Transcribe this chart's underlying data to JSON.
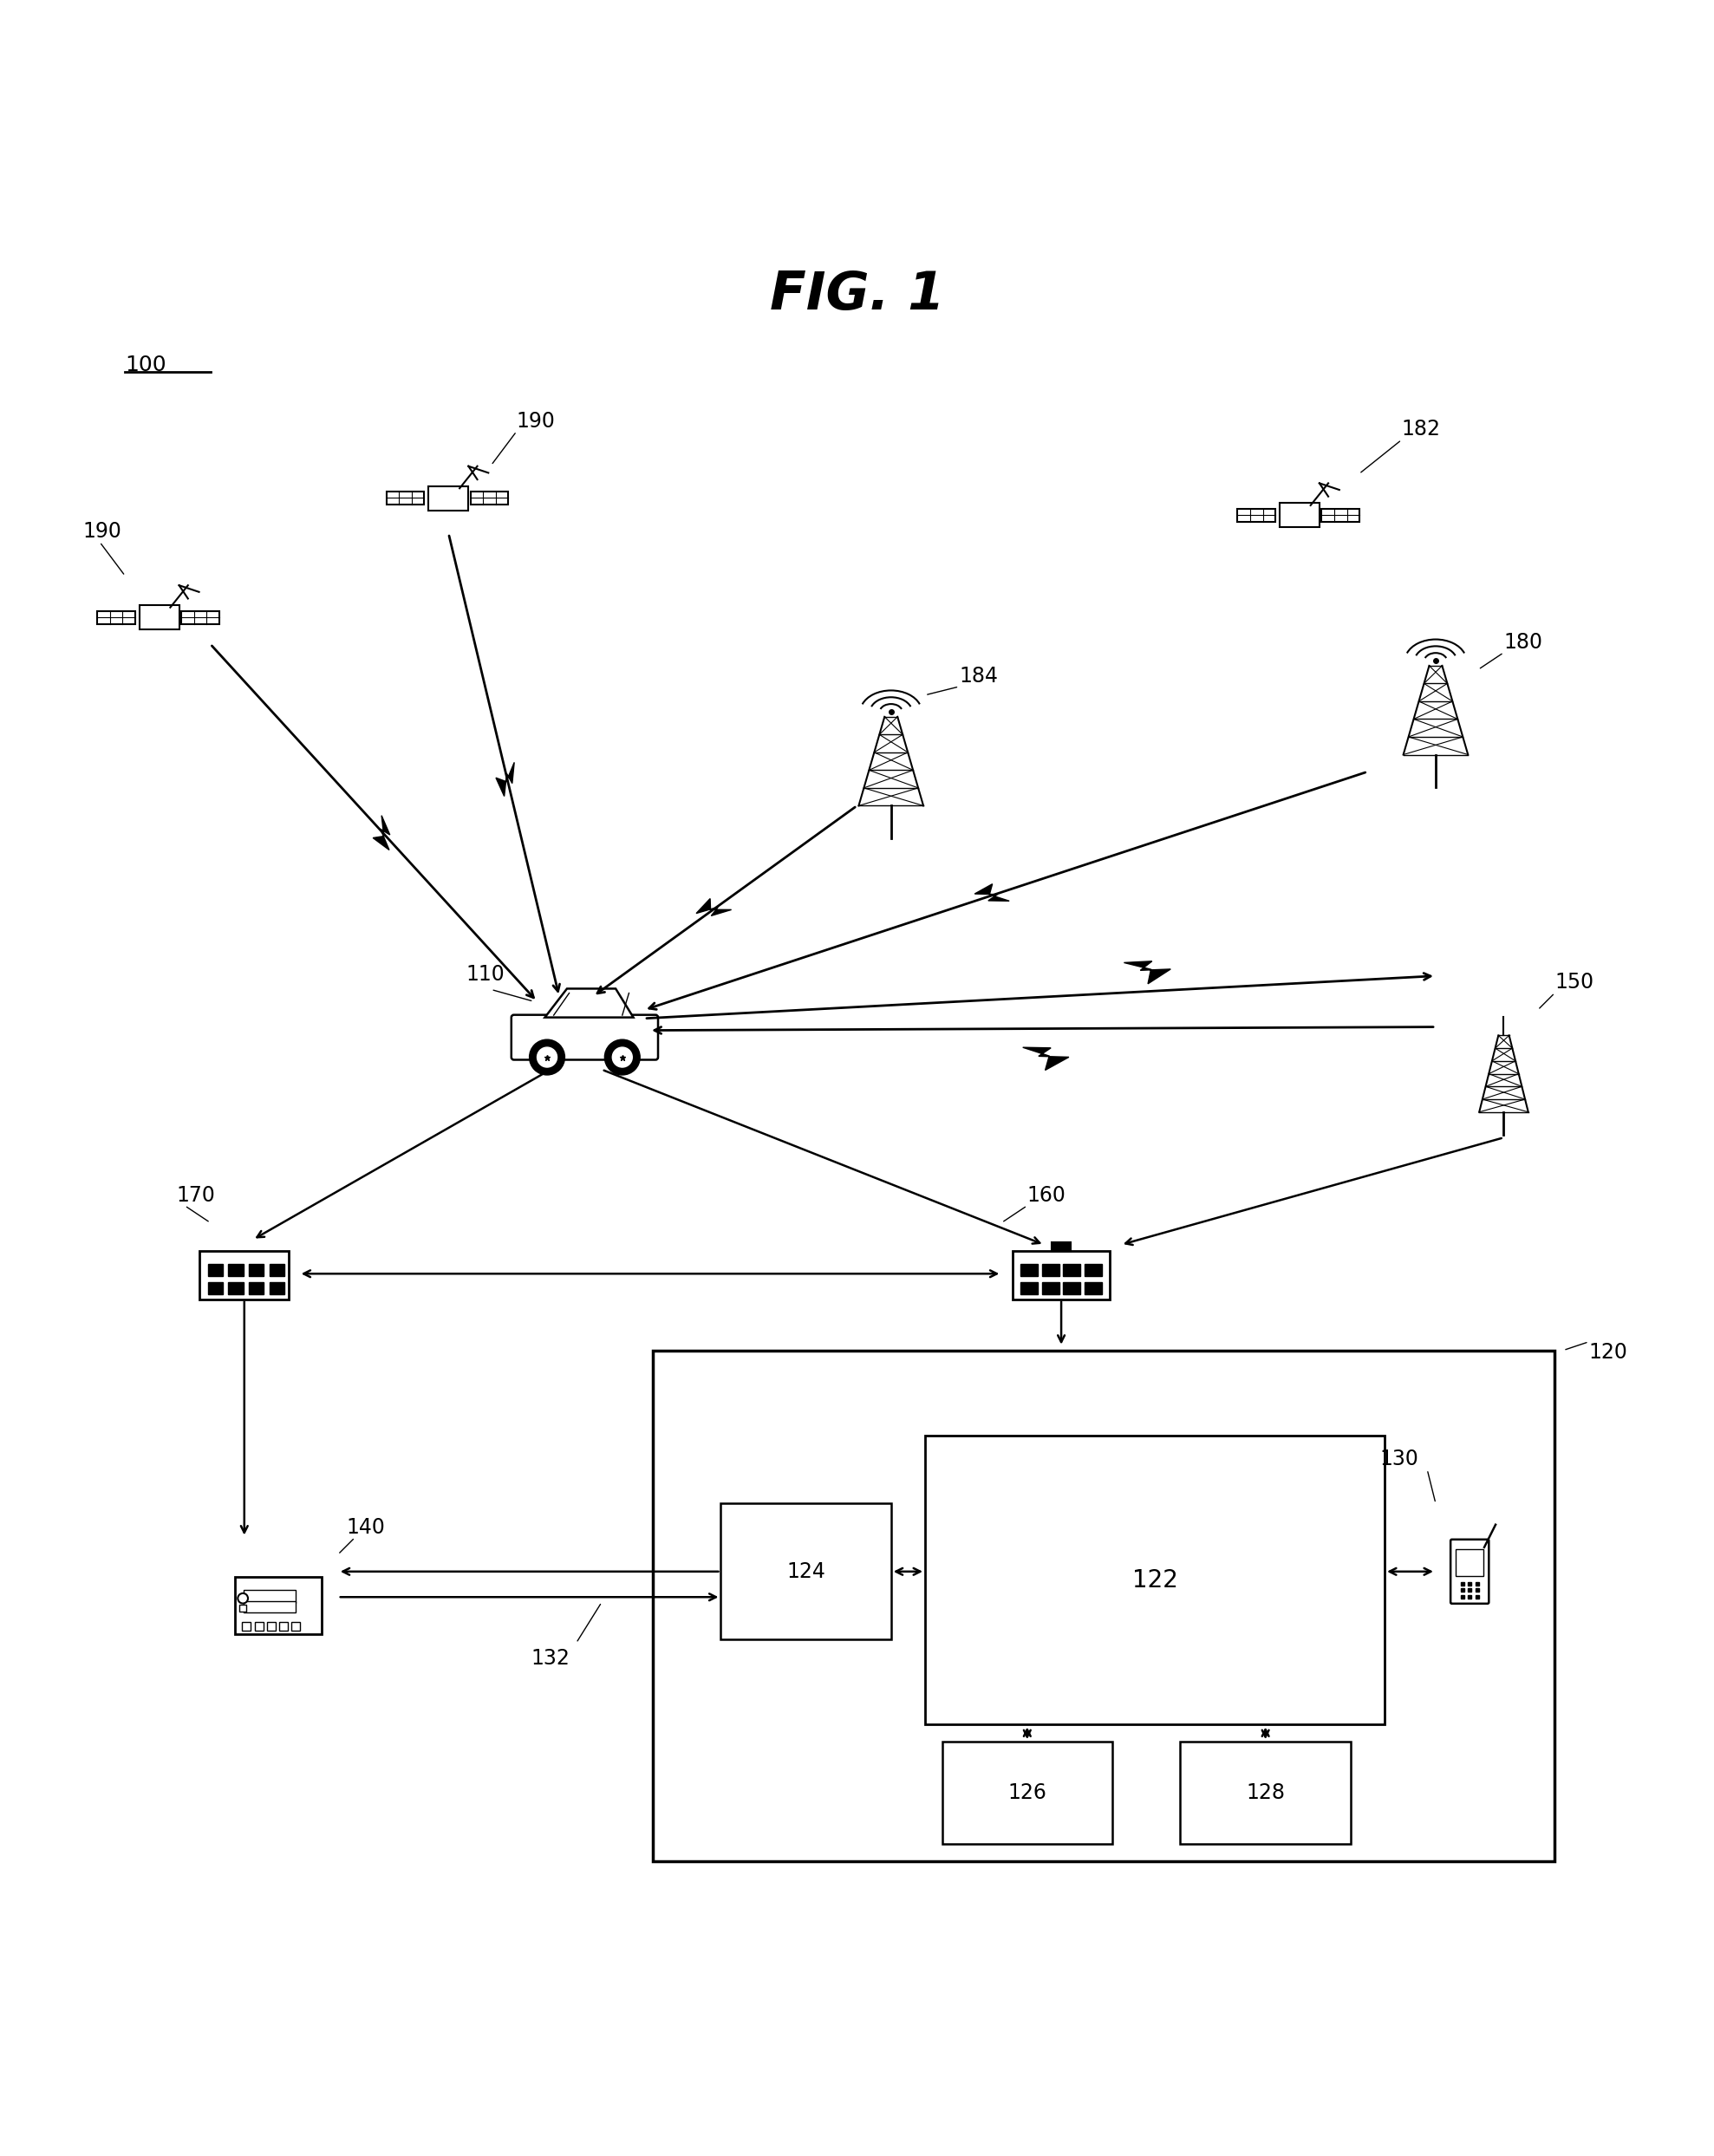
{
  "title": "FIG. 1",
  "label_100": "100",
  "label_110": "110",
  "label_120": "120",
  "label_122": "122",
  "label_124": "124",
  "label_126": "126",
  "label_128": "128",
  "label_130": "130",
  "label_132": "132",
  "label_140": "140",
  "label_150": "150",
  "label_160": "160",
  "label_170": "170",
  "label_180": "180",
  "label_182": "182",
  "label_184": "184",
  "label_190a": "190",
  "label_190b": "190",
  "label_190c": "190",
  "bg_color": "#ffffff",
  "line_color": "#000000",
  "fig_width": 19.77,
  "fig_height": 24.87
}
